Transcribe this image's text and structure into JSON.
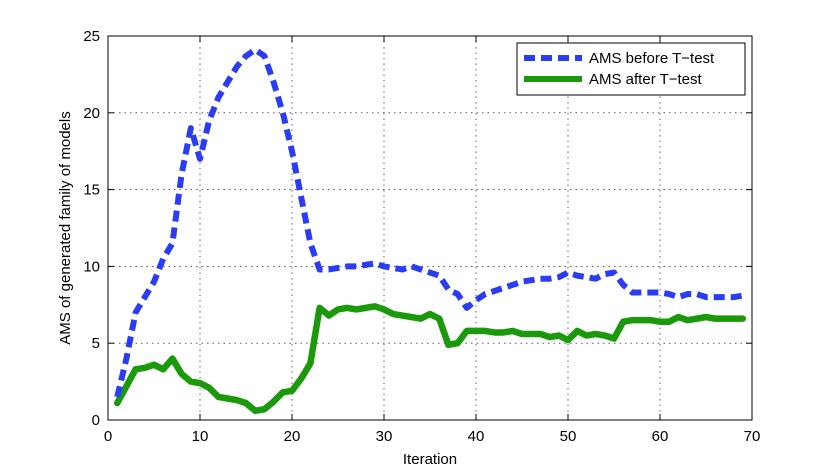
{
  "chart_data": {
    "type": "line",
    "title": "",
    "xlabel": "Iteration",
    "ylabel": "AMS of generated family of models",
    "xlim": [
      0,
      70
    ],
    "ylim": [
      0,
      25
    ],
    "xticks": [
      0,
      10,
      20,
      30,
      40,
      50,
      60,
      70
    ],
    "yticks": [
      0,
      5,
      10,
      15,
      20,
      25
    ],
    "grid": true,
    "legend_position": "top-right",
    "series": [
      {
        "name": "AMS before T−test",
        "color": "#2b3cf5",
        "style": "dashed",
        "x": [
          1,
          2,
          3,
          4,
          5,
          6,
          7,
          8,
          9,
          10,
          11,
          12,
          13,
          14,
          15,
          16,
          17,
          18,
          19,
          20,
          21,
          22,
          23,
          24,
          25,
          26,
          27,
          28,
          29,
          30,
          31,
          32,
          33,
          34,
          35,
          36,
          37,
          38,
          39,
          40,
          41,
          42,
          43,
          44,
          45,
          46,
          47,
          48,
          49,
          50,
          51,
          52,
          53,
          54,
          55,
          56,
          57,
          58,
          59,
          60,
          61,
          62,
          63,
          64,
          65,
          66,
          67,
          68,
          69
        ],
        "y": [
          1.5,
          4.0,
          7.0,
          8.0,
          9.0,
          10.5,
          11.5,
          16.0,
          19.0,
          17.0,
          19.5,
          21.0,
          22.0,
          23.0,
          23.7,
          24.1,
          23.7,
          22.0,
          20.0,
          17.5,
          14.5,
          11.5,
          9.8,
          9.8,
          9.9,
          10.0,
          10.0,
          10.1,
          10.2,
          10.0,
          9.9,
          9.8,
          10.0,
          9.8,
          9.6,
          9.4,
          8.5,
          8.2,
          7.3,
          7.8,
          8.2,
          8.4,
          8.6,
          8.8,
          9.0,
          9.1,
          9.2,
          9.2,
          9.3,
          9.6,
          9.4,
          9.3,
          9.2,
          9.5,
          9.6,
          8.8,
          8.3,
          8.3,
          8.3,
          8.3,
          8.2,
          8.0,
          8.2,
          8.2,
          8.0,
          8.0,
          8.0,
          8.0,
          8.1
        ]
      },
      {
        "name": "AMS after T−test",
        "color": "#1a9a0a",
        "style": "solid",
        "x": [
          1,
          2,
          3,
          4,
          5,
          6,
          7,
          8,
          9,
          10,
          11,
          12,
          13,
          14,
          15,
          16,
          17,
          18,
          19,
          20,
          21,
          22,
          23,
          24,
          25,
          26,
          27,
          28,
          29,
          30,
          31,
          32,
          33,
          34,
          35,
          36,
          37,
          38,
          39,
          40,
          41,
          42,
          43,
          44,
          45,
          46,
          47,
          48,
          49,
          50,
          51,
          52,
          53,
          54,
          55,
          56,
          57,
          58,
          59,
          60,
          61,
          62,
          63,
          64,
          65,
          66,
          67,
          68,
          69
        ],
        "y": [
          1.1,
          2.2,
          3.3,
          3.4,
          3.6,
          3.3,
          4.0,
          3.0,
          2.5,
          2.4,
          2.1,
          1.5,
          1.4,
          1.3,
          1.1,
          0.6,
          0.7,
          1.2,
          1.8,
          1.9,
          2.7,
          3.7,
          7.3,
          6.8,
          7.2,
          7.3,
          7.2,
          7.3,
          7.4,
          7.2,
          6.9,
          6.8,
          6.7,
          6.6,
          6.9,
          6.6,
          4.9,
          5.0,
          5.8,
          5.8,
          5.8,
          5.7,
          5.7,
          5.8,
          5.6,
          5.6,
          5.6,
          5.4,
          5.5,
          5.2,
          5.8,
          5.5,
          5.6,
          5.5,
          5.3,
          6.4,
          6.5,
          6.5,
          6.5,
          6.4,
          6.4,
          6.7,
          6.5,
          6.6,
          6.7,
          6.6,
          6.6,
          6.6,
          6.6
        ]
      }
    ]
  }
}
